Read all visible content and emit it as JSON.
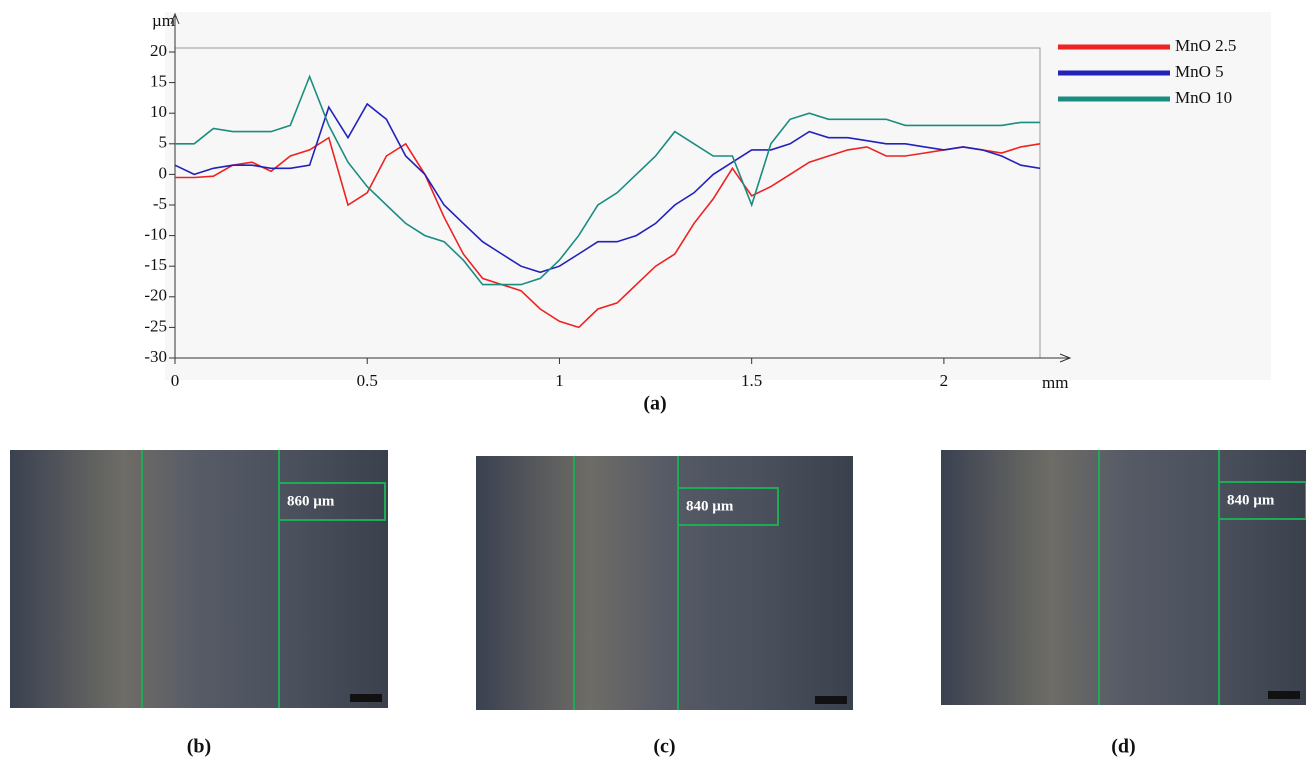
{
  "chart_data": {
    "type": "line",
    "y_label": "µm",
    "x_label": "mm",
    "x": [
      0,
      0.05,
      0.1,
      0.15,
      0.2,
      0.25,
      0.3,
      0.35,
      0.4,
      0.45,
      0.5,
      0.55,
      0.6,
      0.65,
      0.7,
      0.75,
      0.8,
      0.85,
      0.9,
      0.95,
      1.0,
      1.05,
      1.1,
      1.15,
      1.2,
      1.25,
      1.3,
      1.35,
      1.4,
      1.45,
      1.5,
      1.55,
      1.6,
      1.65,
      1.7,
      1.75,
      1.8,
      1.85,
      1.9,
      1.95,
      2.0,
      2.05,
      2.1,
      2.15,
      2.2,
      2.25
    ],
    "series": [
      {
        "name": "MnO 2.5",
        "color": "#ee2222",
        "values": [
          -0.5,
          -0.5,
          -0.3,
          1.5,
          2,
          0.5,
          3,
          4,
          6,
          -5,
          -3,
          3,
          5,
          0,
          -7,
          -13,
          -17,
          -18,
          -19,
          -22,
          -24,
          -25,
          -22,
          -21,
          -18,
          -15,
          -13,
          -8,
          -4,
          1,
          -3.5,
          -2,
          0,
          2,
          3,
          4,
          4.5,
          3,
          3,
          3.5,
          4,
          4.5,
          4,
          3.5,
          4.5,
          5
        ]
      },
      {
        "name": "MnO 5",
        "color": "#2222bb",
        "values": [
          1.5,
          0,
          1,
          1.5,
          1.5,
          1,
          1,
          1.5,
          11,
          6,
          11.5,
          9,
          3,
          0,
          -5,
          -8,
          -11,
          -13,
          -15,
          -16,
          -15,
          -13,
          -11,
          -11,
          -10,
          -8,
          -5,
          -3,
          0,
          2,
          4,
          4,
          5,
          7,
          6,
          6,
          5.5,
          5,
          5,
          4.5,
          4,
          4.5,
          4,
          3,
          1.5,
          1
        ]
      },
      {
        "name": "MnO 10",
        "color": "#1a8c80",
        "values": [
          5,
          5,
          7.5,
          7,
          7,
          7,
          8,
          16,
          8,
          2,
          -2,
          -5,
          -8,
          -10,
          -11,
          -14,
          -18,
          -18,
          -18,
          -17,
          -14,
          -10,
          -5,
          -3,
          0,
          3,
          7,
          5,
          3,
          3,
          -5,
          5,
          9,
          10,
          9,
          9,
          9,
          9,
          8,
          8,
          8,
          8,
          8,
          8,
          8.5,
          8.5
        ]
      }
    ],
    "xlim": [
      0,
      2.25
    ],
    "ylim": [
      -30,
      20
    ],
    "xticks": [
      0,
      0.5,
      1,
      1.5,
      2
    ],
    "yticks": [
      -30,
      -25,
      -20,
      -15,
      -10,
      -5,
      0,
      5,
      10,
      15,
      20
    ],
    "legend": "right"
  },
  "caption": "(a)",
  "panels": [
    {
      "caption": "(b)",
      "measurement": "860 µm"
    },
    {
      "caption": "(c)",
      "measurement": "840 µm"
    },
    {
      "caption": "(d)",
      "measurement": "840 µm"
    }
  ]
}
